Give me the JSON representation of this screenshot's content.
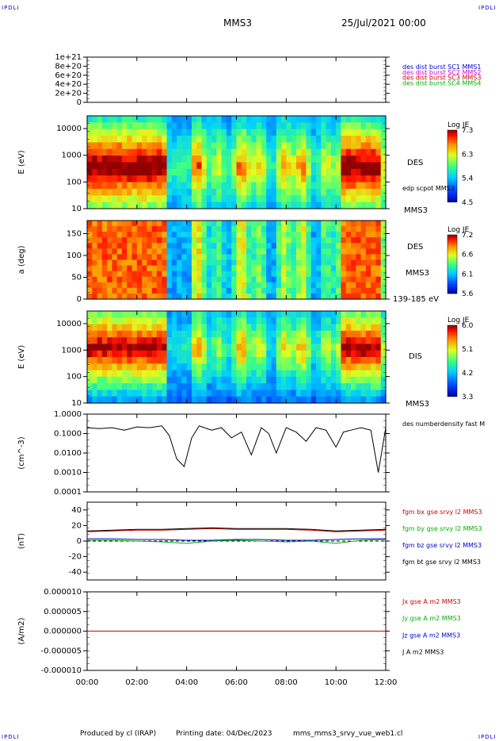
{
  "corner_label": "IPDLI",
  "header": {
    "spacecraft": "MMS3",
    "date": "25/Jul/2021 00:00"
  },
  "footer": {
    "producer": "Produced by cl (IRAP)",
    "printing_date": "Printing date: 04/Dec/2023",
    "filename": "mms_mms3_srvy_vue_web1.cl"
  },
  "time_axis": {
    "range_hours": [
      0,
      12
    ],
    "ticks": [
      "00:00",
      "02:00",
      "04:00",
      "06:00",
      "08:00",
      "10:00",
      "12:00"
    ]
  },
  "colors": {
    "red": "#d00000",
    "magenta": "#d000d0",
    "blue": "#0000d0",
    "green": "#00b000",
    "black": "#000000"
  },
  "chart_data": [
    {
      "type": "line",
      "panel": "burst-dist",
      "ylim": [
        0,
        1e+21
      ],
      "ytick_values": [
        0,
        2e+20,
        4e+20,
        6e+20,
        8e+20,
        1e+21
      ],
      "ytick_labels": [
        "0",
        "2e+20",
        "4e+20",
        "6e+20",
        "8e+20",
        "1e+21"
      ],
      "dashed_zero": true,
      "legend": [
        {
          "text": "des dist burst SC1 MMS1",
          "color": "#0000d0"
        },
        {
          "text": "des dist burst SC2 MMS2",
          "color": "#d000d0"
        },
        {
          "text": "des dist burst SC3 MMS3",
          "color": "#d00000"
        },
        {
          "text": "des dist burst SC4 MMS4",
          "color": "#00b000"
        }
      ]
    },
    {
      "type": "heatmap",
      "panel": "des-energy",
      "ylabel": "E (eV)",
      "yscale": "log",
      "ylim": [
        10,
        30000
      ],
      "ytick_values": [
        10,
        100,
        1000,
        10000
      ],
      "ytick_labels": [
        "10",
        "100",
        "1000",
        "10000"
      ],
      "side_labels": [
        "DES",
        "edp scpot MMS3",
        "MMS3"
      ],
      "colorbar": {
        "title": "Log JE",
        "ticks": [
          "7.3",
          "6.3",
          "5.4",
          "4.5"
        ]
      }
    },
    {
      "type": "heatmap",
      "panel": "des-pitch",
      "ylabel": "a (deg)",
      "ylim": [
        0,
        180
      ],
      "ytick_values": [
        0,
        50,
        100,
        150
      ],
      "ytick_labels": [
        "0",
        "50",
        "100",
        "150"
      ],
      "side_labels": [
        "DES",
        "MMS3",
        "139-185 eV"
      ],
      "colorbar": {
        "title": "Log JE",
        "ticks": [
          "7.2",
          "6.6",
          "6.1",
          "5.6"
        ]
      }
    },
    {
      "type": "heatmap",
      "panel": "dis-energy",
      "ylabel": "E (eV)",
      "yscale": "log",
      "ylim": [
        10,
        30000
      ],
      "ytick_values": [
        10,
        100,
        1000,
        10000
      ],
      "ytick_labels": [
        "10",
        "100",
        "1000",
        "10000"
      ],
      "side_labels": [
        "DIS",
        "MMS3"
      ],
      "colorbar": {
        "title": "Log JE",
        "ticks": [
          "6.0",
          "5.1",
          "4.2",
          "3.3"
        ]
      }
    },
    {
      "type": "line",
      "panel": "density",
      "ylabel": "(cm^-3)",
      "yscale": "log",
      "ylim": [
        0.0001,
        1.0
      ],
      "ytick_values": [
        0.0001,
        0.001,
        0.01,
        0.1,
        1.0
      ],
      "ytick_labels": [
        "0.0001",
        "0.0010",
        "0.0100",
        "0.1000",
        "1.0000"
      ],
      "legend": [
        {
          "text": "des numberdensity fast M",
          "color": "#000000"
        }
      ],
      "series": [
        {
          "x": [
            0,
            0.5,
            1,
            1.5,
            2,
            2.5,
            3,
            3.3,
            3.6,
            3.9,
            4.2,
            4.5,
            5,
            5.4,
            5.8,
            6.2,
            6.6,
            7,
            7.3,
            7.6,
            8,
            8.4,
            8.8,
            9.2,
            9.6,
            10,
            10.3,
            10.6,
            11,
            11.4,
            11.7,
            12
          ],
          "y": [
            0.2,
            0.18,
            0.2,
            0.15,
            0.22,
            0.2,
            0.25,
            0.08,
            0.005,
            0.002,
            0.06,
            0.25,
            0.15,
            0.2,
            0.06,
            0.12,
            0.008,
            0.2,
            0.1,
            0.01,
            0.2,
            0.12,
            0.04,
            0.2,
            0.15,
            0.02,
            0.12,
            0.15,
            0.2,
            0.15,
            0.001,
            0.2
          ]
        }
      ]
    },
    {
      "type": "line",
      "panel": "magnetic-field",
      "ylabel": "(nT)",
      "ylim": [
        -50,
        50
      ],
      "ytick_values": [
        -40,
        -20,
        0,
        20,
        40
      ],
      "ytick_labels": [
        "-40",
        "-20",
        "0",
        "20",
        "40"
      ],
      "dashed_zero": true,
      "legend": [
        {
          "text": "fgm bx gse srvy l2 MMS3",
          "color": "#d00000"
        },
        {
          "text": "fgm by gse srvy l2 MMS3",
          "color": "#00b000"
        },
        {
          "text": "fgm bz gse srvy l2 MMS3",
          "color": "#0000d0"
        },
        {
          "text": "fgm bt gse srvy l2 MMS3",
          "color": "#000000"
        }
      ],
      "series": [
        {
          "x": [
            0,
            1,
            2,
            3,
            4,
            5,
            6,
            7,
            8,
            9,
            10,
            11,
            12
          ],
          "y": [
            12,
            13,
            14,
            14,
            15,
            16,
            15,
            15,
            15,
            14,
            12,
            13,
            14
          ]
        },
        {
          "x": [
            0,
            1,
            2,
            3,
            4,
            5,
            6,
            7,
            8,
            9,
            10,
            11,
            12
          ],
          "y": [
            1,
            1,
            0,
            -1,
            -3,
            0,
            1,
            0,
            -1,
            0,
            -3,
            1,
            2
          ]
        },
        {
          "x": [
            0,
            1,
            2,
            3,
            4,
            5,
            6,
            7,
            8,
            9,
            10,
            11,
            12
          ],
          "y": [
            3,
            3,
            2,
            2,
            1,
            1,
            2,
            2,
            1,
            1,
            2,
            3,
            3
          ]
        },
        {
          "x": [
            0,
            1,
            2,
            3,
            4,
            5,
            6,
            7,
            8,
            9,
            10,
            11,
            12
          ],
          "y": [
            13,
            14,
            15,
            15,
            16,
            17,
            16,
            16,
            16,
            15,
            13,
            14,
            15
          ]
        }
      ]
    },
    {
      "type": "line",
      "panel": "current-density",
      "ylabel": "(A/m2)",
      "ylim": [
        -1e-05,
        1e-05
      ],
      "ytick_values": [
        -1e-05,
        -5e-06,
        0,
        5e-06,
        1e-05
      ],
      "ytick_labels": [
        "-0.000010",
        "-0.000005",
        "0.000000",
        "0.000005",
        "0.000010"
      ],
      "legend": [
        {
          "text": "Jx gse A m2 MMS3",
          "color": "#d00000"
        },
        {
          "text": "Jy gse A m2 MMS3",
          "color": "#00b000"
        },
        {
          "text": "Jz gse A m2 MMS3",
          "color": "#0000d0"
        },
        {
          "text": "J A m2 MMS3",
          "color": "#000000"
        }
      ],
      "series": [
        {
          "x": [
            0,
            12
          ],
          "y": [
            0,
            0
          ]
        }
      ]
    }
  ]
}
